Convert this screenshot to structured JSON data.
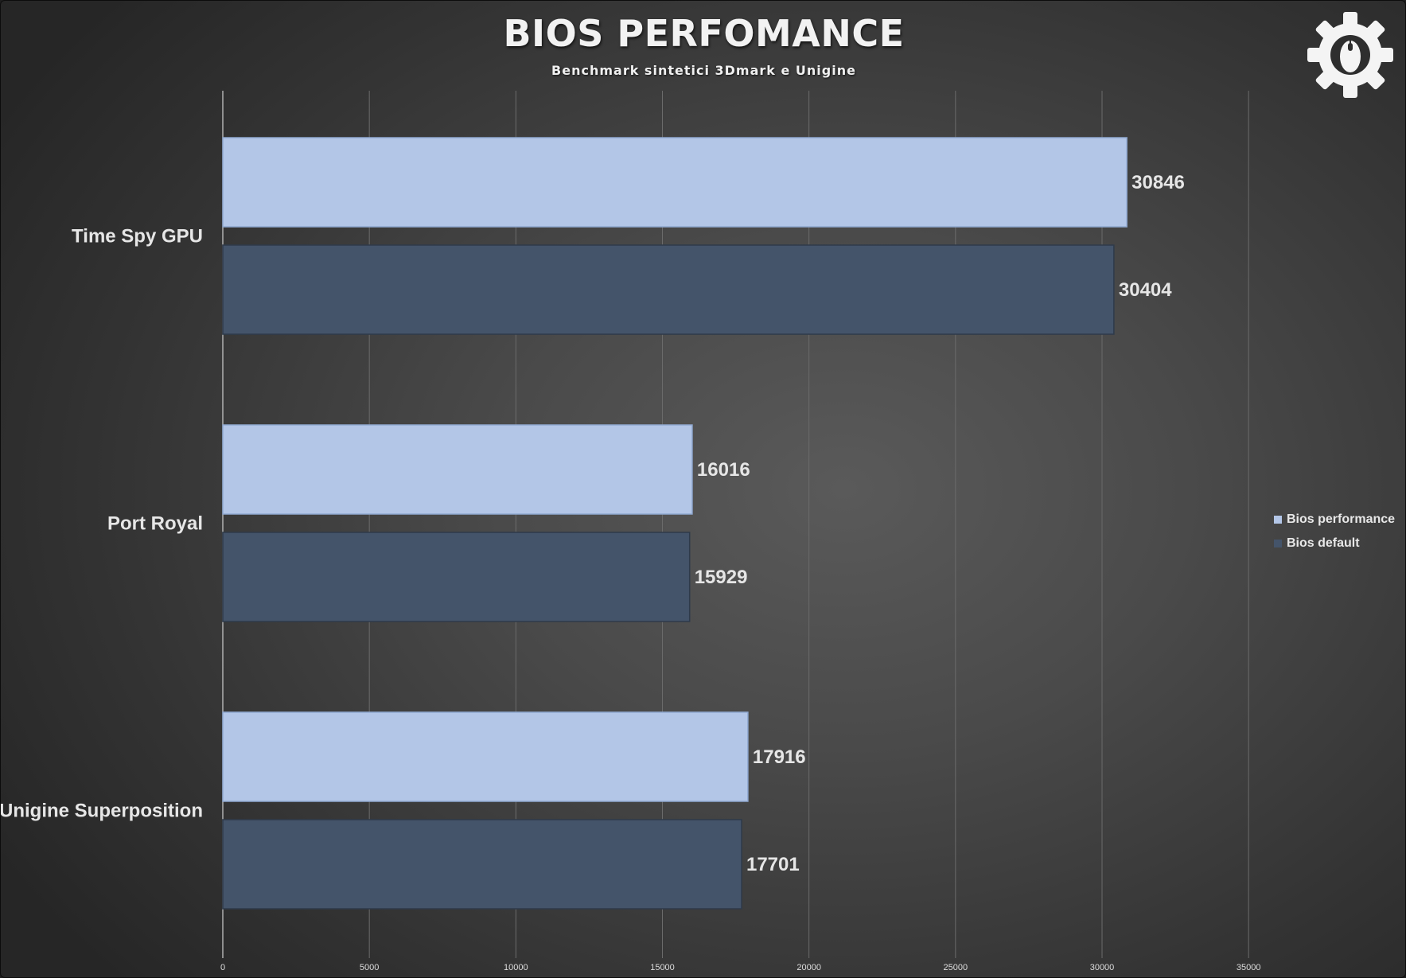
{
  "chart_data": {
    "type": "bar",
    "orientation": "horizontal",
    "title": "BIOS PERFOMANCE",
    "subtitle": "Benchmark sintetici 3Dmark e Unigine",
    "categories": [
      "Time Spy GPU",
      "Port Royal",
      "Unigine Superposition"
    ],
    "series": [
      {
        "name": "Bios performance",
        "values": [
          30846,
          16016,
          17916
        ],
        "color": "#b3c6e7"
      },
      {
        "name": "Bios default",
        "values": [
          30404,
          15929,
          17701
        ],
        "color": "#44546a"
      }
    ],
    "xlim": [
      0,
      35000
    ],
    "x_ticks": [
      0,
      5000,
      10000,
      15000,
      20000,
      25000,
      30000,
      35000
    ],
    "grid": true,
    "legend_position": "right",
    "data_labels": true
  },
  "colors": {
    "bar_light_stroke": "#8fa8d0",
    "bar_dark_stroke": "#2e3a4a",
    "grid": "#6b6b6b",
    "axis": "#cfcfcf",
    "text": "#e8e8e8"
  },
  "logo": {
    "icon": "gear-mouse-icon"
  }
}
